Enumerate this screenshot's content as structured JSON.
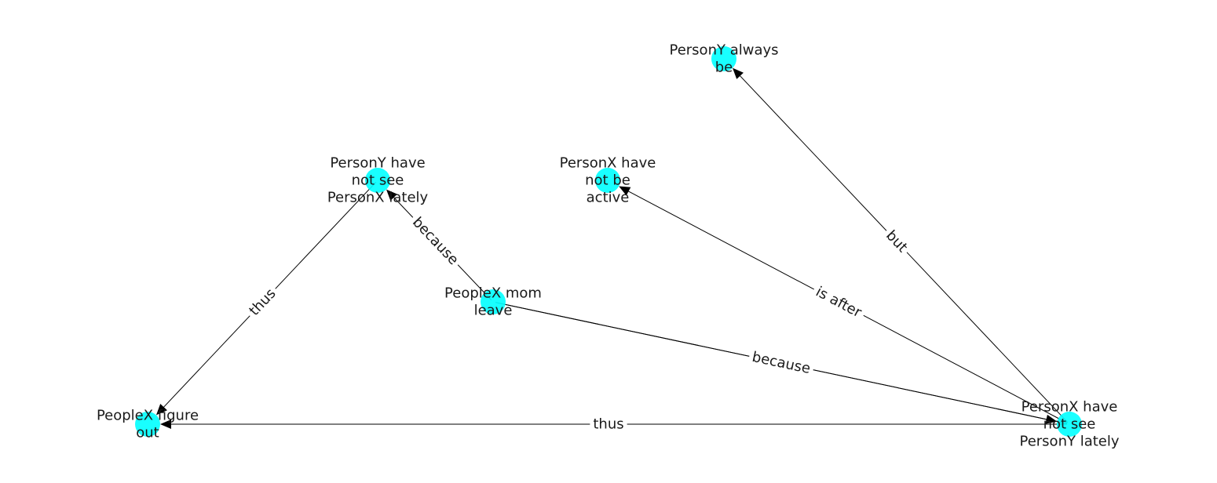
{
  "diagram": {
    "type": "directed-graph",
    "node_color": "#00ffff",
    "edge_color": "#000000",
    "nodes": [
      {
        "id": "n1",
        "lines": [
          "PersonY always",
          "be"
        ]
      },
      {
        "id": "n2",
        "lines": [
          "PersonY have",
          "not see",
          "PersonX lately"
        ]
      },
      {
        "id": "n3",
        "lines": [
          "PersonX have",
          "not be",
          "active"
        ]
      },
      {
        "id": "n4",
        "lines": [
          "PeopleX mom",
          "leave"
        ]
      },
      {
        "id": "n5",
        "lines": [
          "PeopleX figure",
          "out"
        ]
      },
      {
        "id": "n6",
        "lines": [
          "PersonX have",
          "not see",
          "PersonY lately"
        ]
      }
    ],
    "edges": [
      {
        "id": "e1",
        "from": "n6",
        "to": "n1",
        "label": "but"
      },
      {
        "id": "e2",
        "from": "n6",
        "to": "n3",
        "label": "is after"
      },
      {
        "id": "e3",
        "from": "n6",
        "to": "n4",
        "label": "because",
        "arrow": false
      },
      {
        "id": "e4",
        "from": "n4",
        "to": "n6",
        "label": "",
        "arrow": true
      },
      {
        "id": "e5",
        "from": "n4",
        "to": "n2",
        "label": "because"
      },
      {
        "id": "e6",
        "from": "n2",
        "to": "n5",
        "label": "thus"
      },
      {
        "id": "e7",
        "from": "n6",
        "to": "n5",
        "label": "thus"
      }
    ]
  }
}
